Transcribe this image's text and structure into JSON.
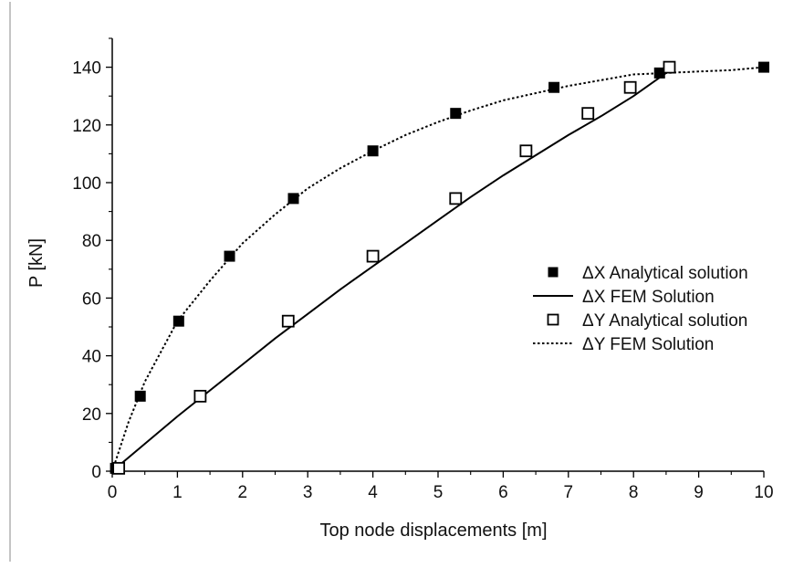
{
  "chart_data": {
    "type": "line",
    "title": "",
    "xlabel": "Top node displacements [m]",
    "ylabel": "P [kN]",
    "xlim": [
      0,
      10
    ],
    "ylim": [
      0,
      150
    ],
    "xticks": [
      0,
      1,
      2,
      3,
      4,
      5,
      6,
      7,
      8,
      9,
      10
    ],
    "yticks": [
      0,
      20,
      40,
      60,
      80,
      100,
      120,
      140
    ],
    "grid": false,
    "legend_position": "right",
    "series": [
      {
        "name": "ΔX Analytical solution",
        "kind": "markers",
        "marker": "filled-square",
        "x": [
          0.05,
          0.43,
          1.02,
          1.8,
          2.78,
          4.0,
          5.27,
          6.78,
          8.4,
          10.0
        ],
        "y": [
          1,
          26,
          52,
          74.5,
          94.5,
          111,
          124,
          133,
          138,
          140
        ]
      },
      {
        "name": "ΔX FEM Solution",
        "kind": "line",
        "dash": "solid",
        "x": [
          0,
          0.5,
          1.0,
          1.5,
          2.0,
          2.5,
          3.0,
          3.5,
          4.0,
          4.5,
          5.0,
          5.5,
          6.0,
          6.5,
          7.0,
          7.5,
          8.0,
          8.5,
          8.55
        ],
        "y": [
          0,
          9.5,
          19,
          28,
          37,
          46,
          54.5,
          63,
          71,
          79,
          87,
          95,
          102.5,
          109.5,
          116.5,
          123,
          130,
          138,
          140
        ]
      },
      {
        "name": "ΔY Analytical solution",
        "kind": "markers",
        "marker": "open-square",
        "x": [
          0.1,
          1.35,
          2.7,
          4.0,
          5.27,
          6.35,
          7.3,
          7.95,
          8.55
        ],
        "y": [
          1,
          26,
          52,
          74.5,
          94.5,
          111,
          124,
          133,
          140
        ]
      },
      {
        "name": "ΔY FEM Solution",
        "kind": "line",
        "dash": "dotted",
        "x": [
          0,
          0.25,
          0.5,
          1.0,
          1.5,
          2.0,
          2.5,
          3.0,
          3.5,
          4.0,
          4.5,
          5.0,
          5.5,
          6.0,
          6.5,
          7.0,
          7.5,
          8.0,
          8.5,
          9.0,
          9.5,
          10.0
        ],
        "y": [
          0,
          17,
          31,
          52,
          66,
          79,
          89,
          98,
          105,
          111,
          116.5,
          121,
          125,
          128.5,
          131,
          133.5,
          135.5,
          137.5,
          138,
          138.5,
          139,
          140
        ]
      }
    ]
  }
}
